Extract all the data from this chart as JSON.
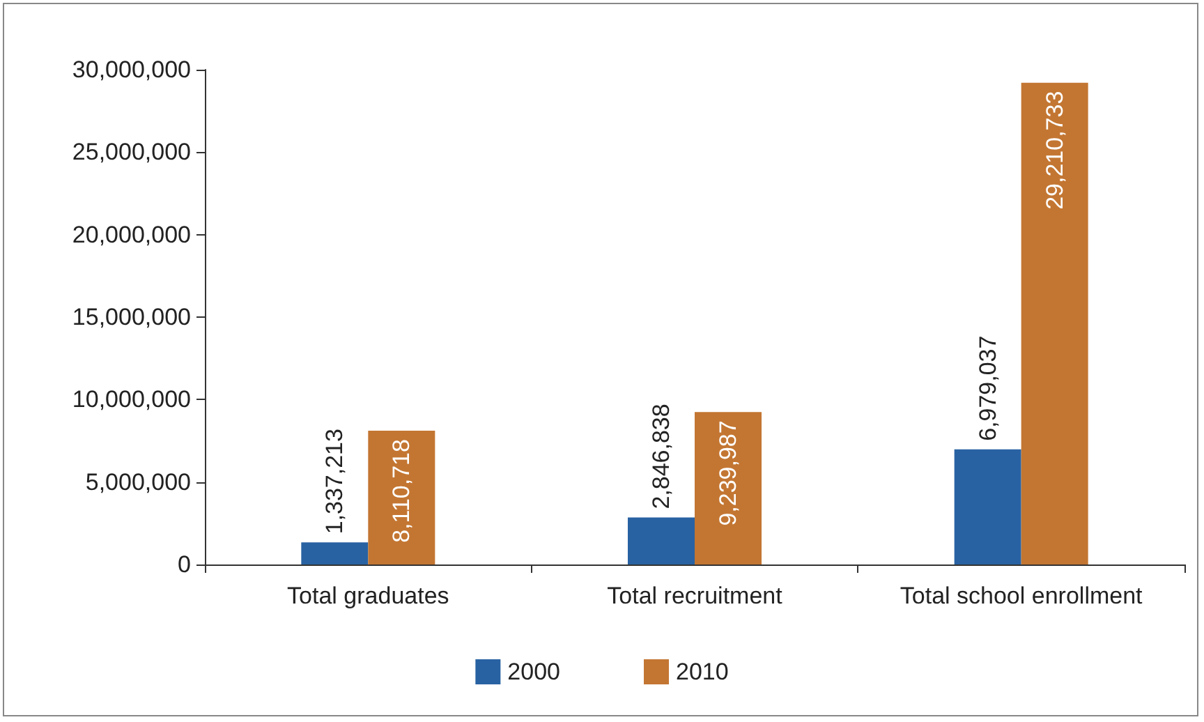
{
  "chart_data": {
    "type": "bar",
    "categories": [
      "Total graduates",
      "Total recruitment",
      "Total school enrollment"
    ],
    "series": [
      {
        "name": "2000",
        "color": "#2862a2",
        "values": [
          1337213,
          2846838,
          6979037
        ],
        "value_labels": [
          "1,337,213",
          "2,846,838",
          "6,979,037"
        ]
      },
      {
        "name": "2010",
        "color": "#c37632",
        "values": [
          8110718,
          9239987,
          29210733
        ],
        "value_labels": [
          "8,110,718",
          "9,239,987",
          "29,210,733"
        ]
      }
    ],
    "ylim": [
      0,
      30000000
    ],
    "yticks": [
      {
        "value": 0,
        "label": "0"
      },
      {
        "value": 5000000,
        "label": "5,000,000"
      },
      {
        "value": 10000000,
        "label": "10,000,000"
      },
      {
        "value": 15000000,
        "label": "15,000,000"
      },
      {
        "value": 20000000,
        "label": "20,000,000"
      },
      {
        "value": 25000000,
        "label": "25,000,000"
      },
      {
        "value": 30000000,
        "label": "30,000,000"
      }
    ],
    "grid": false,
    "legend": "bottom"
  }
}
